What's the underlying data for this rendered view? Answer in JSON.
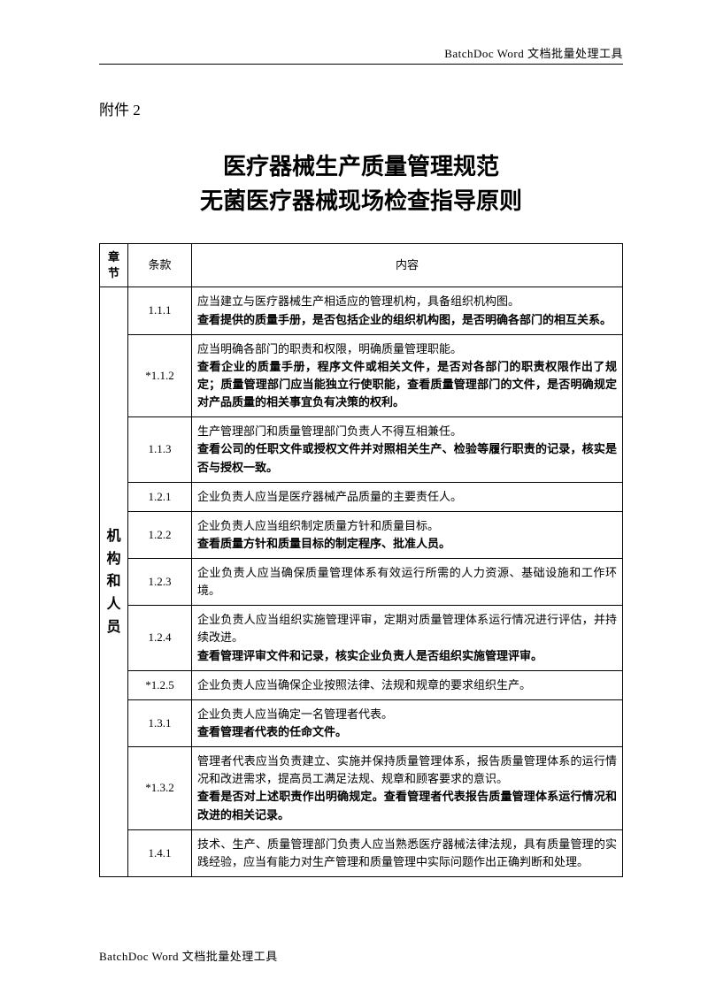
{
  "header": "BatchDoc Word 文档批量处理工具",
  "footer": "BatchDoc Word 文档批量处理工具",
  "attachment": "附件 2",
  "title_line1": "医疗器械生产质量管理规范",
  "title_line2": "无菌医疗器械现场检查指导原则",
  "columns": {
    "chapter": "章节",
    "clause": "条款",
    "content": "内容"
  },
  "chapter_label": "机构和人员",
  "rows": [
    {
      "clause": "1.1.1",
      "lines": [
        {
          "t": "应当建立与医疗器械生产相适应的管理机构，具备组织机构图。",
          "b": false
        },
        {
          "t": "查看提供的质量手册，是否包括企业的组织机构图，是否明确各部门的相互关系。",
          "b": true
        }
      ]
    },
    {
      "clause": "*1.1.2",
      "lines": [
        {
          "t": "应当明确各部门的职责和权限，明确质量管理职能。",
          "b": false
        },
        {
          "t": "查看企业的质量手册，程序文件或相关文件，是否对各部门的职责权限作出了规定；质量管理部门应当能独立行使职能，查看质量管理部门的文件，是否明确规定对产品质量的相关事宜负有决策的权利。",
          "b": true
        }
      ]
    },
    {
      "clause": "1.1.3",
      "lines": [
        {
          "t": "生产管理部门和质量管理部门负责人不得互相兼任。",
          "b": false
        },
        {
          "t": "查看公司的任职文件或授权文件并对照相关生产、检验等履行职责的记录，核实是否与授权一致。",
          "b": true
        }
      ]
    },
    {
      "clause": "1.2.1",
      "lines": [
        {
          "t": "企业负责人应当是医疗器械产品质量的主要责任人。",
          "b": false
        }
      ]
    },
    {
      "clause": "1.2.2",
      "lines": [
        {
          "t": "企业负责人应当组织制定质量方针和质量目标。",
          "b": false
        },
        {
          "t": "查看质量方针和质量目标的制定程序、批准人员。",
          "b": true
        }
      ]
    },
    {
      "clause": "1.2.3",
      "lines": [
        {
          "t": "企业负责人应当确保质量管理体系有效运行所需的人力资源、基础设施和工作环境。",
          "b": false
        }
      ]
    },
    {
      "clause": "1.2.4",
      "lines": [
        {
          "t": "企业负责人应当组织实施管理评审，定期对质量管理体系运行情况进行评估，并持续改进。",
          "b": false
        },
        {
          "t": "查看管理评审文件和记录，核实企业负责人是否组织实施管理评审。",
          "b": true
        }
      ]
    },
    {
      "clause": "*1.2.5",
      "lines": [
        {
          "t": "企业负责人应当确保企业按照法律、法规和规章的要求组织生产。",
          "b": false
        }
      ]
    },
    {
      "clause": "1.3.1",
      "lines": [
        {
          "t": "企业负责人应当确定一名管理者代表。",
          "b": false
        },
        {
          "t": "查看管理者代表的任命文件。",
          "b": true
        }
      ]
    },
    {
      "clause": "*1.3.2",
      "lines": [
        {
          "t": "管理者代表应当负责建立、实施并保持质量管理体系，报告质量管理体系的运行情况和改进需求，提高员工满足法规、规章和顾客要求的意识。",
          "b": false
        },
        {
          "t": "查看是否对上述职责作出明确规定。查看管理者代表报告质量管理体系运行情况和改进的相关记录。",
          "b": true
        }
      ]
    },
    {
      "clause": "1.4.1",
      "lines": [
        {
          "t": "技术、生产、质量管理部门负责人应当熟悉医疗器械法律法规，具有质量管理的实践经验，应当有能力对生产管理和质量管理中实际问题作出正确判断和处理。",
          "b": false
        }
      ]
    }
  ]
}
